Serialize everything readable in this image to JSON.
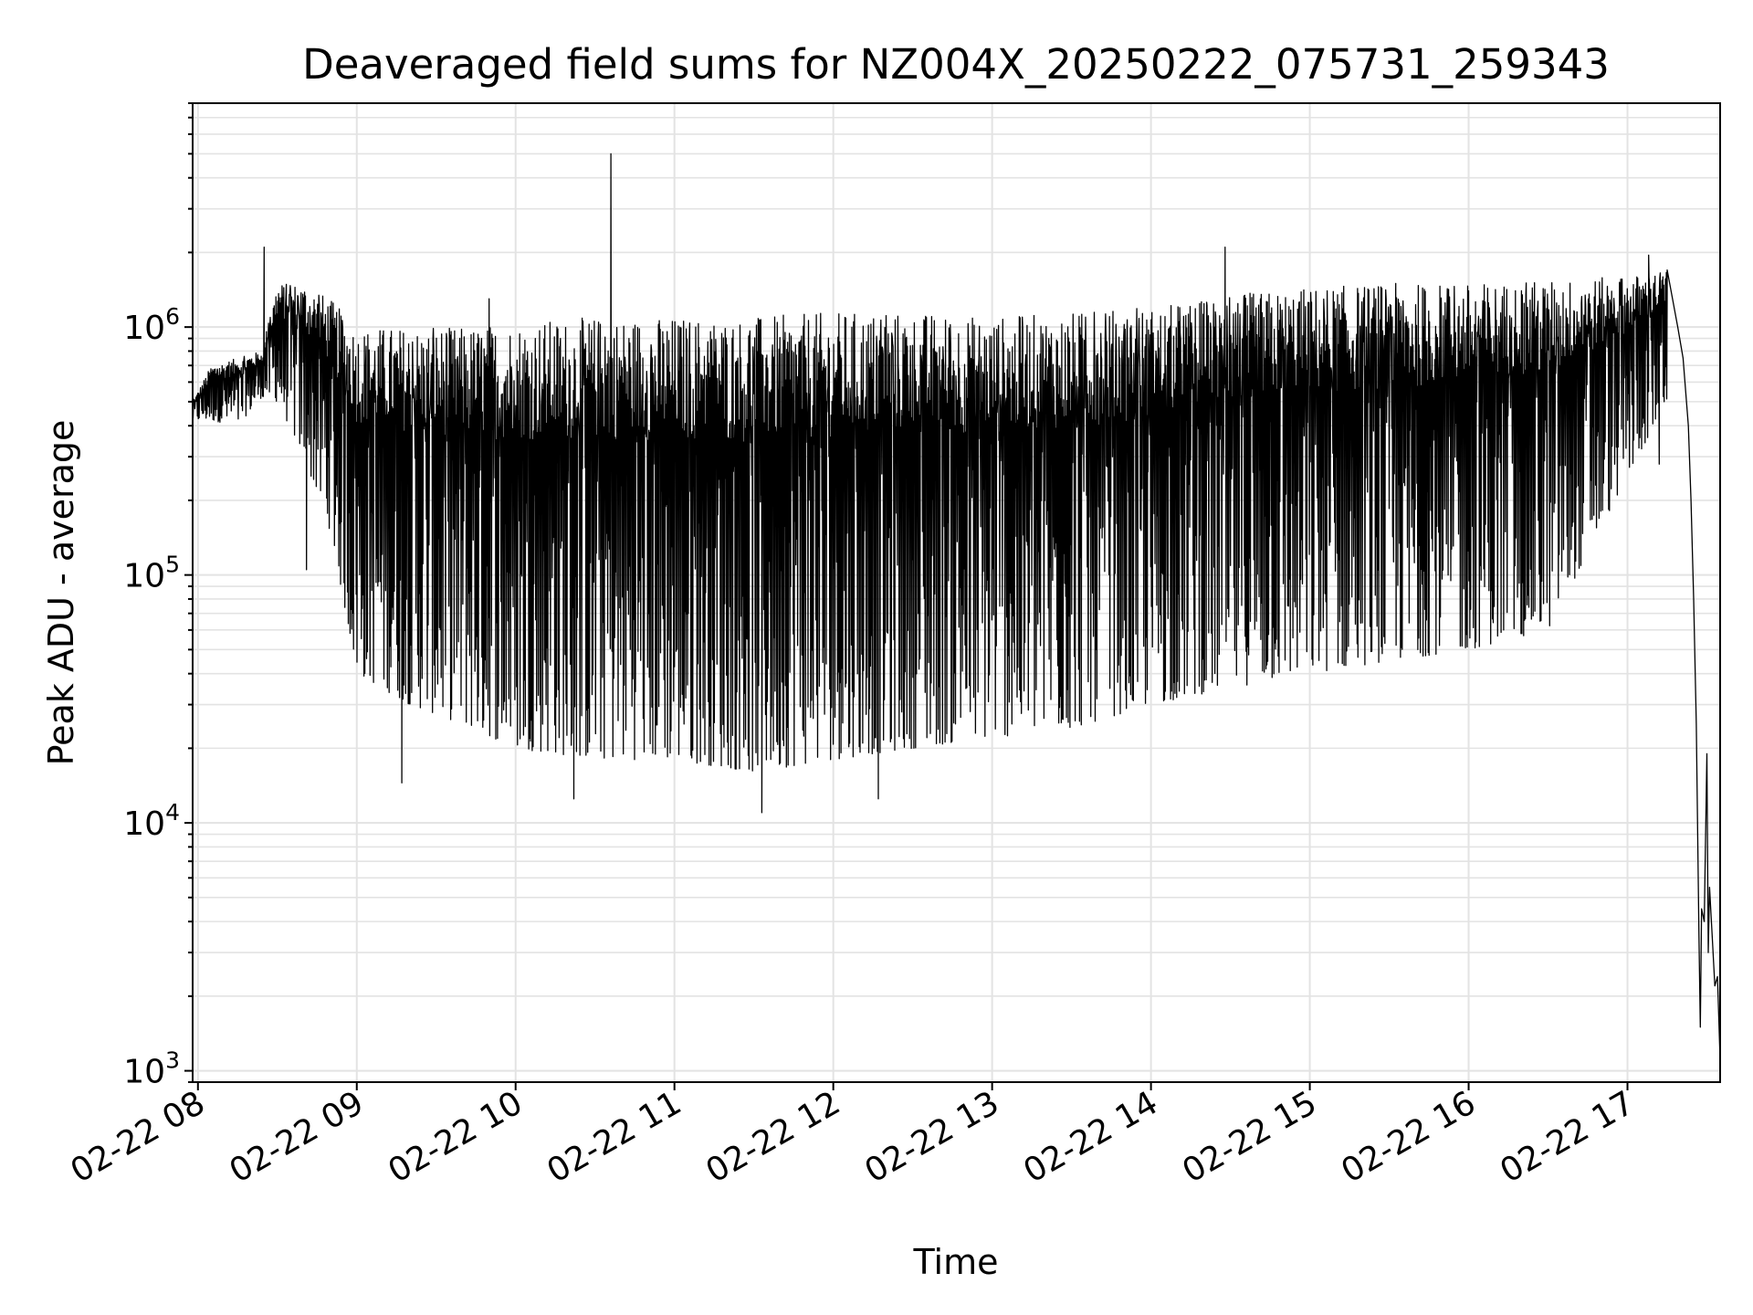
{
  "chart_data": {
    "type": "line",
    "title": "Deaveraged field sums for NZ004X_20250222_075731_259343",
    "xlabel": "Time",
    "ylabel": "Peak ADU - average",
    "yscale": "log",
    "ylim": [
      900,
      8000000
    ],
    "xlim": [
      "2025-02-22 07:58",
      "2025-02-22 17:35"
    ],
    "grid": true,
    "legend": "none",
    "line_color": "#000000",
    "x_ticks": [
      {
        "time": "2025-02-22 08:00",
        "label": "02-22 08"
      },
      {
        "time": "2025-02-22 09:00",
        "label": "02-22 09"
      },
      {
        "time": "2025-02-22 10:00",
        "label": "02-22 10"
      },
      {
        "time": "2025-02-22 11:00",
        "label": "02-22 11"
      },
      {
        "time": "2025-02-22 12:00",
        "label": "02-22 12"
      },
      {
        "time": "2025-02-22 13:00",
        "label": "02-22 13"
      },
      {
        "time": "2025-02-22 14:00",
        "label": "02-22 14"
      },
      {
        "time": "2025-02-22 15:00",
        "label": "02-22 15"
      },
      {
        "time": "2025-02-22 16:00",
        "label": "02-22 16"
      },
      {
        "time": "2025-02-22 17:00",
        "label": "02-22 17"
      }
    ],
    "y_ticks": [
      {
        "value": 1000,
        "base": "10",
        "exp": "3"
      },
      {
        "value": 10000,
        "base": "10",
        "exp": "4"
      },
      {
        "value": 100000,
        "base": "10",
        "exp": "5"
      },
      {
        "value": 1000000,
        "base": "10",
        "exp": "6"
      }
    ],
    "series": [
      {
        "envelope": [
          {
            "time": "2025-02-22 07:58",
            "high": 500000,
            "low": 420000
          },
          {
            "time": "2025-02-22 08:05",
            "high": 700000,
            "low": 420000
          },
          {
            "time": "2025-02-22 08:15",
            "high": 750000,
            "low": 400000
          },
          {
            "time": "2025-02-22 08:24",
            "high": 800000,
            "low": 520000
          },
          {
            "time": "2025-02-22 08:30",
            "high": 1500000,
            "low": 500000
          },
          {
            "time": "2025-02-22 08:40",
            "high": 1500000,
            "low": 300000
          },
          {
            "time": "2025-02-22 08:50",
            "high": 1300000,
            "low": 150000
          },
          {
            "time": "2025-02-22 09:00",
            "high": 1000000,
            "low": 40000
          },
          {
            "time": "2025-02-22 09:20",
            "high": 1000000,
            "low": 30000
          },
          {
            "time": "2025-02-22 09:40",
            "high": 1000000,
            "low": 25000
          },
          {
            "time": "2025-02-22 10:00",
            "high": 1050000,
            "low": 20000
          },
          {
            "time": "2025-02-22 10:30",
            "high": 1100000,
            "low": 18000
          },
          {
            "time": "2025-02-22 11:00",
            "high": 1100000,
            "low": 18000
          },
          {
            "time": "2025-02-22 11:30",
            "high": 1100000,
            "low": 16000
          },
          {
            "time": "2025-02-22 12:00",
            "high": 1150000,
            "low": 18000
          },
          {
            "time": "2025-02-22 12:30",
            "high": 1150000,
            "low": 20000
          },
          {
            "time": "2025-02-22 13:00",
            "high": 1100000,
            "low": 22000
          },
          {
            "time": "2025-02-22 13:30",
            "high": 1150000,
            "low": 24000
          },
          {
            "time": "2025-02-22 14:00",
            "high": 1200000,
            "low": 30000
          },
          {
            "time": "2025-02-22 14:30",
            "high": 1350000,
            "low": 35000
          },
          {
            "time": "2025-02-22 15:00",
            "high": 1450000,
            "low": 40000
          },
          {
            "time": "2025-02-22 15:30",
            "high": 1500000,
            "low": 45000
          },
          {
            "time": "2025-02-22 16:00",
            "high": 1500000,
            "low": 50000
          },
          {
            "time": "2025-02-22 16:30",
            "high": 1550000,
            "low": 60000
          },
          {
            "time": "2025-02-22 17:00",
            "high": 1600000,
            "low": 250000
          },
          {
            "time": "2025-02-22 17:15",
            "high": 1700000,
            "low": 500000
          },
          {
            "time": "2025-02-22 17:20",
            "high": 1500000,
            "low": 800000
          }
        ],
        "spikes": [
          {
            "time": "2025-02-22 08:25",
            "value": 2100000
          },
          {
            "time": "2025-02-22 08:41",
            "value": 105000
          },
          {
            "time": "2025-02-22 09:17",
            "value": 14500
          },
          {
            "time": "2025-02-22 09:50",
            "value": 1300000
          },
          {
            "time": "2025-02-22 10:22",
            "value": 12500
          },
          {
            "time": "2025-02-22 10:36",
            "value": 5000000
          },
          {
            "time": "2025-02-22 11:33",
            "value": 11000
          },
          {
            "time": "2025-02-22 12:17",
            "value": 12500
          },
          {
            "time": "2025-02-22 14:28",
            "value": 2100000
          },
          {
            "time": "2025-02-22 17:08",
            "value": 1950000
          },
          {
            "time": "2025-02-22 17:12",
            "value": 280000
          }
        ],
        "tail": [
          {
            "time": "2025-02-22 17:15",
            "value": 1700000
          },
          {
            "time": "2025-02-22 17:19",
            "value": 1000000
          },
          {
            "time": "2025-02-22 17:21",
            "value": 750000
          },
          {
            "time": "2025-02-22 17:23",
            "value": 400000
          },
          {
            "time": "2025-02-22 17:24",
            "value": 200000
          },
          {
            "time": "2025-02-22 17:25",
            "value": 80000
          },
          {
            "time": "2025-02-22 17:26",
            "value": 25000
          },
          {
            "time": "2025-02-22 17:27",
            "value": 3500
          },
          {
            "time": "2025-02-22 17:27.5",
            "value": 1500
          },
          {
            "time": "2025-02-22 17:28",
            "value": 4500
          },
          {
            "time": "2025-02-22 17:29",
            "value": 4000
          },
          {
            "time": "2025-02-22 17:30",
            "value": 19000
          },
          {
            "time": "2025-02-22 17:30.5",
            "value": 3000
          },
          {
            "time": "2025-02-22 17:31",
            "value": 5500
          },
          {
            "time": "2025-02-22 17:32",
            "value": 3500
          },
          {
            "time": "2025-02-22 17:33",
            "value": 2200
          },
          {
            "time": "2025-02-22 17:34",
            "value": 2400
          },
          {
            "time": "2025-02-22 17:35",
            "value": 1100
          }
        ]
      }
    ]
  }
}
